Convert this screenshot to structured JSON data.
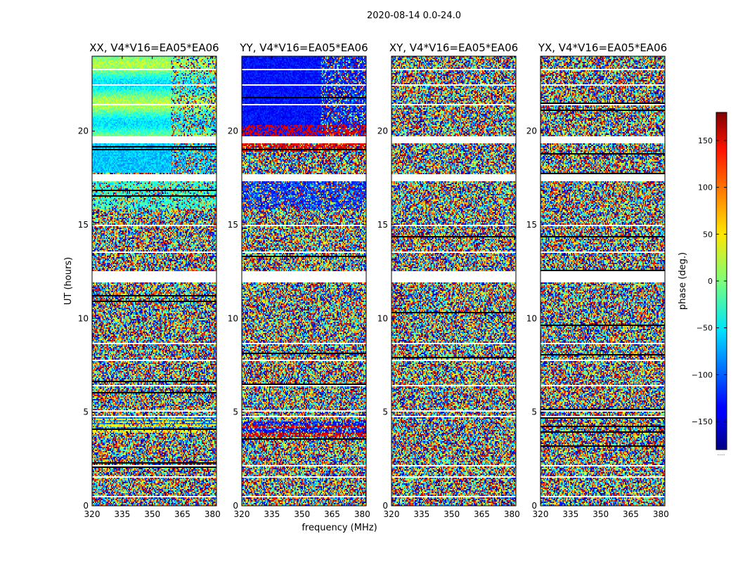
{
  "chart_data": {
    "type": "heatmap",
    "title": "2020-08-14 0.0-24.0",
    "xlabel": "frequency (MHz)",
    "ylabel": "UT (hours)",
    "xlim": [
      320,
      382
    ],
    "ylim": [
      0,
      24
    ],
    "xticks": [
      320,
      335,
      350,
      365,
      380
    ],
    "yticks": [
      0,
      5,
      10,
      15,
      20
    ],
    "panels": [
      {
        "title": "XX, V4*V16=EA05*EA06",
        "pattern": "parallel-xx"
      },
      {
        "title": "YY, V4*V16=EA05*EA06",
        "pattern": "parallel-yy"
      },
      {
        "title": "XY, V4*V16=EA05*EA06",
        "pattern": "cross"
      },
      {
        "title": "YX, V4*V16=EA05*EA06",
        "pattern": "cross"
      }
    ],
    "flagged_time_bands_hours": [
      [
        0.45,
        0.5
      ],
      [
        1.5,
        1.55
      ],
      [
        2.1,
        2.15
      ],
      [
        2.9,
        2.95
      ],
      [
        3.8,
        3.85
      ],
      [
        4.75,
        4.8
      ],
      [
        5.0,
        5.1
      ],
      [
        6.4,
        6.45
      ],
      [
        7.7,
        7.8
      ],
      [
        8.65,
        8.7
      ],
      [
        11.9,
        12.5
      ],
      [
        13.5,
        13.55
      ],
      [
        14.9,
        15.0
      ],
      [
        17.3,
        17.7
      ],
      [
        19.35,
        19.7
      ],
      [
        21.4,
        21.45
      ],
      [
        22.45,
        22.5
      ],
      [
        23.25,
        23.3
      ]
    ],
    "colorbar": {
      "label": "phase (deg.)",
      "range": [
        -180,
        180
      ],
      "ticks": [
        -150,
        -100,
        -50,
        0,
        50,
        100,
        150
      ],
      "colormap": "jet",
      "footer": "......"
    }
  }
}
